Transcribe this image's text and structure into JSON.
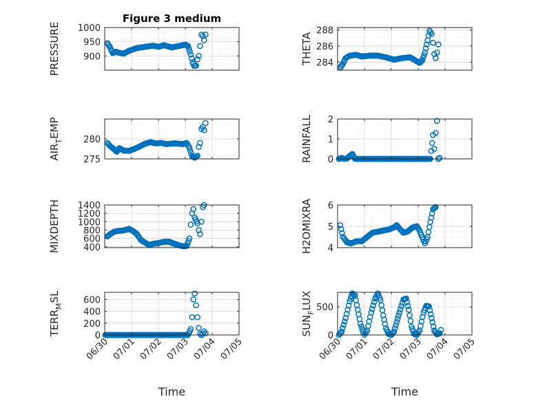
{
  "colors": {
    "marker": "#0072BD",
    "axis": "#262626",
    "grid": "#D9D9D9",
    "background": "#FFFFFF"
  },
  "chart_data": [
    {
      "type": "scatter",
      "title": "Figure 3 medium",
      "xlabel": "",
      "ylabel": "PRESSURE",
      "xlim": [
        0,
        5
      ],
      "ylim": [
        850,
        1000
      ],
      "yticks": [
        900,
        950,
        1000
      ],
      "yticklabels": [
        "900",
        "950",
        "1000"
      ],
      "xticklabels": [],
      "grid": true,
      "knots": [
        [
          0.1,
          945
        ],
        [
          0.2,
          930
        ],
        [
          0.3,
          910
        ],
        [
          0.4,
          915
        ],
        [
          0.5,
          912
        ],
        [
          0.7,
          908
        ],
        [
          0.9,
          918
        ],
        [
          1.2,
          928
        ],
        [
          1.5,
          932
        ],
        [
          1.8,
          936
        ],
        [
          2.0,
          932
        ],
        [
          2.2,
          938
        ],
        [
          2.5,
          930
        ],
        [
          2.8,
          936
        ],
        [
          3.0,
          940
        ],
        [
          3.1,
          935
        ],
        [
          3.2,
          905
        ],
        [
          3.27,
          878
        ],
        [
          3.33,
          865
        ],
        [
          3.4,
          866
        ],
        [
          3.45,
          888
        ],
        [
          3.5,
          900
        ],
        [
          3.55,
          935
        ],
        [
          3.6,
          975
        ],
        [
          3.65,
          970
        ],
        [
          3.7,
          955
        ],
        [
          3.75,
          975
        ]
      ]
    },
    {
      "type": "scatter",
      "title": "",
      "xlabel": "",
      "ylabel": "THETA",
      "xlim": [
        0,
        5
      ],
      "ylim": [
        283,
        288.3
      ],
      "yticks": [
        284,
        286,
        288
      ],
      "yticklabels": [
        "284",
        "286",
        "288"
      ],
      "xticklabels": [],
      "grid": true,
      "knots": [
        [
          0.1,
          283.3
        ],
        [
          0.2,
          283.8
        ],
        [
          0.3,
          284.5
        ],
        [
          0.45,
          284.8
        ],
        [
          0.7,
          284.9
        ],
        [
          0.9,
          284.7
        ],
        [
          1.2,
          284.8
        ],
        [
          1.5,
          284.8
        ],
        [
          1.8,
          284.6
        ],
        [
          2.1,
          284.3
        ],
        [
          2.4,
          284.5
        ],
        [
          2.7,
          284.6
        ],
        [
          2.9,
          284.2
        ],
        [
          3.05,
          283.9
        ],
        [
          3.15,
          284.2
        ],
        [
          3.25,
          285.2
        ],
        [
          3.35,
          286.7
        ],
        [
          3.42,
          287.9
        ],
        [
          3.5,
          287.5
        ],
        [
          3.55,
          286.4
        ],
        [
          3.6,
          285.0
        ],
        [
          3.65,
          284.5
        ],
        [
          3.7,
          285.2
        ],
        [
          3.75,
          286.2
        ]
      ]
    },
    {
      "type": "scatter",
      "title": "",
      "xlabel": "",
      "ylabel": "AIR_TEMP",
      "xlim": [
        0,
        5
      ],
      "ylim": [
        275,
        285
      ],
      "yticks": [
        275,
        280
      ],
      "yticklabels": [
        "275",
        "280"
      ],
      "xticklabels": [],
      "grid": true,
      "knots": [
        [
          0.1,
          279.0
        ],
        [
          0.2,
          278.2
        ],
        [
          0.35,
          277.4
        ],
        [
          0.45,
          276.8
        ],
        [
          0.55,
          277.7
        ],
        [
          0.7,
          277.1
        ],
        [
          0.9,
          277.0
        ],
        [
          1.1,
          277.5
        ],
        [
          1.3,
          278.1
        ],
        [
          1.5,
          278.8
        ],
        [
          1.7,
          279.2
        ],
        [
          1.9,
          278.9
        ],
        [
          2.1,
          279.0
        ],
        [
          2.3,
          278.7
        ],
        [
          2.6,
          278.9
        ],
        [
          2.9,
          278.7
        ],
        [
          3.05,
          279.0
        ],
        [
          3.15,
          277.8
        ],
        [
          3.25,
          275.7
        ],
        [
          3.35,
          275.3
        ],
        [
          3.45,
          275.8
        ],
        [
          3.5,
          278.0
        ],
        [
          3.55,
          279.0
        ],
        [
          3.6,
          282.5
        ],
        [
          3.65,
          283.0
        ],
        [
          3.7,
          282.2
        ],
        [
          3.75,
          284.0
        ]
      ]
    },
    {
      "type": "scatter",
      "title": "",
      "xlabel": "",
      "ylabel": "RAINFALL",
      "xlim": [
        0,
        5
      ],
      "ylim": [
        0,
        2
      ],
      "yticks": [
        0,
        1,
        2
      ],
      "yticklabels": [
        "0",
        "1",
        "2"
      ],
      "xticklabels": [],
      "grid": true,
      "knots": [
        [
          0.05,
          0.0
        ],
        [
          0.15,
          0.05
        ],
        [
          0.25,
          0.0
        ],
        [
          0.35,
          0.02
        ],
        [
          0.45,
          0.15
        ],
        [
          0.55,
          0.25
        ],
        [
          0.65,
          0.0
        ],
        [
          2.0,
          0.0
        ],
        [
          3.45,
          0.0
        ],
        [
          3.55,
          1.2
        ],
        [
          3.6,
          0.5
        ],
        [
          3.65,
          1.3
        ],
        [
          3.7,
          1.9
        ],
        [
          3.75,
          0.0
        ],
        [
          3.8,
          0.05
        ]
      ]
    },
    {
      "type": "scatter",
      "title": "",
      "xlabel": "",
      "ylabel": "MIXDEPTH",
      "xlim": [
        0,
        5
      ],
      "ylim": [
        380,
        1400
      ],
      "yticks": [
        400,
        600,
        800,
        1000,
        1200,
        1400
      ],
      "yticklabels": [
        "400",
        "600",
        "800",
        "1000",
        "1200",
        "1400"
      ],
      "xticklabels": [],
      "grid": true,
      "knots": [
        [
          0.1,
          650
        ],
        [
          0.2,
          700
        ],
        [
          0.35,
          760
        ],
        [
          0.5,
          780
        ],
        [
          0.7,
          790
        ],
        [
          0.9,
          830
        ],
        [
          1.05,
          780
        ],
        [
          1.2,
          700
        ],
        [
          1.35,
          560
        ],
        [
          1.5,
          500
        ],
        [
          1.65,
          440
        ],
        [
          1.8,
          470
        ],
        [
          2.0,
          490
        ],
        [
          2.2,
          520
        ],
        [
          2.4,
          520
        ],
        [
          2.6,
          470
        ],
        [
          2.8,
          430
        ],
        [
          2.95,
          410
        ],
        [
          3.05,
          420
        ],
        [
          3.15,
          600
        ],
        [
          3.2,
          930
        ],
        [
          3.25,
          1200
        ],
        [
          3.3,
          1300
        ],
        [
          3.35,
          1100
        ],
        [
          3.45,
          960
        ],
        [
          3.5,
          800
        ],
        [
          3.55,
          700
        ],
        [
          3.6,
          1000
        ],
        [
          3.65,
          1350
        ],
        [
          3.7,
          1400
        ]
      ]
    },
    {
      "type": "scatter",
      "title": "",
      "xlabel": "",
      "ylabel": "H2OMIXRA",
      "xlim": [
        0,
        5
      ],
      "ylim": [
        4,
        6
      ],
      "yticks": [
        4,
        5,
        6
      ],
      "yticklabels": [
        "4",
        "5",
        "6"
      ],
      "xticklabels": [],
      "grid": true,
      "knots": [
        [
          0.1,
          5.05
        ],
        [
          0.2,
          4.5
        ],
        [
          0.35,
          4.25
        ],
        [
          0.5,
          4.2
        ],
        [
          0.7,
          4.3
        ],
        [
          0.9,
          4.3
        ],
        [
          1.1,
          4.5
        ],
        [
          1.3,
          4.7
        ],
        [
          1.5,
          4.75
        ],
        [
          1.7,
          4.8
        ],
        [
          1.9,
          4.85
        ],
        [
          2.1,
          4.95
        ],
        [
          2.2,
          5.05
        ],
        [
          2.3,
          4.9
        ],
        [
          2.45,
          4.7
        ],
        [
          2.6,
          4.75
        ],
        [
          2.8,
          4.95
        ],
        [
          2.95,
          5.0
        ],
        [
          3.05,
          4.8
        ],
        [
          3.15,
          4.5
        ],
        [
          3.25,
          4.2
        ],
        [
          3.35,
          4.5
        ],
        [
          3.45,
          5.2
        ],
        [
          3.55,
          5.8
        ],
        [
          3.65,
          5.9
        ]
      ]
    },
    {
      "type": "scatter",
      "title": "",
      "xlabel": "Time",
      "ylabel": "TERR_MSL",
      "xlim": [
        0,
        5
      ],
      "ylim": [
        0,
        720
      ],
      "yticks": [
        0,
        200,
        400,
        600
      ],
      "yticklabels": [
        "0",
        "200",
        "400",
        "600"
      ],
      "xticklabels": [
        "06/30",
        "07/01",
        "07/02",
        "07/03",
        "07/04",
        "07/05"
      ],
      "grid": true,
      "knots": [
        [
          0.02,
          0
        ],
        [
          1.0,
          0
        ],
        [
          2.0,
          0
        ],
        [
          3.1,
          0
        ],
        [
          3.2,
          100
        ],
        [
          3.25,
          300
        ],
        [
          3.3,
          600
        ],
        [
          3.35,
          700
        ],
        [
          3.4,
          500
        ],
        [
          3.45,
          300
        ],
        [
          3.5,
          120
        ],
        [
          3.55,
          20
        ],
        [
          3.6,
          0
        ],
        [
          3.65,
          20
        ],
        [
          3.7,
          60
        ],
        [
          3.75,
          30
        ]
      ]
    },
    {
      "type": "scatter",
      "title": "",
      "xlabel": "Time",
      "ylabel": "SUN_FLUX",
      "xlim": [
        0,
        5
      ],
      "ylim": [
        0,
        760
      ],
      "yticks": [
        0,
        500
      ],
      "yticklabels": [
        "0",
        "500"
      ],
      "xticklabels": [
        "06/30",
        "07/01",
        "07/02",
        "07/03",
        "07/04",
        "07/05"
      ],
      "grid": true,
      "knots": [
        [
          0.05,
          0
        ],
        [
          0.15,
          60
        ],
        [
          0.3,
          300
        ],
        [
          0.45,
          600
        ],
        [
          0.55,
          740
        ],
        [
          0.65,
          700
        ],
        [
          0.75,
          450
        ],
        [
          0.85,
          200
        ],
        [
          0.95,
          50
        ],
        [
          1.0,
          5
        ],
        [
          1.1,
          80
        ],
        [
          1.25,
          400
        ],
        [
          1.4,
          650
        ],
        [
          1.5,
          740
        ],
        [
          1.6,
          620
        ],
        [
          1.7,
          350
        ],
        [
          1.8,
          120
        ],
        [
          1.9,
          20
        ],
        [
          2.0,
          0
        ],
        [
          2.1,
          60
        ],
        [
          2.3,
          400
        ],
        [
          2.45,
          630
        ],
        [
          2.55,
          650
        ],
        [
          2.65,
          450
        ],
        [
          2.75,
          150
        ],
        [
          2.85,
          20
        ],
        [
          2.95,
          0
        ],
        [
          3.05,
          80
        ],
        [
          3.2,
          400
        ],
        [
          3.3,
          520
        ],
        [
          3.4,
          510
        ],
        [
          3.5,
          300
        ],
        [
          3.6,
          80
        ],
        [
          3.7,
          10
        ],
        [
          3.8,
          30
        ],
        [
          3.85,
          90
        ]
      ]
    }
  ]
}
